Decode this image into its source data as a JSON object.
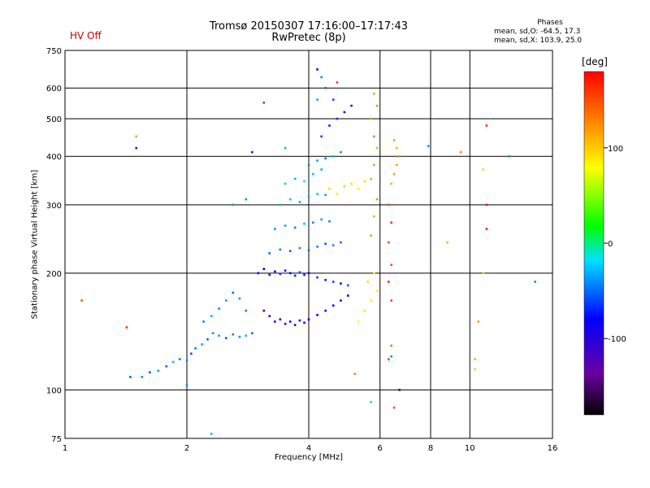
{
  "header": {
    "title": "Tromsø 20150307 17:16:00–17:17:43",
    "subtitle": "RwPretec (8p)",
    "status": "HV Off",
    "status_color": "#cc0000"
  },
  "phase_info": {
    "heading": "Phases",
    "o_mode": "mean, sd,O: -64.5, 17.3",
    "x_mode": "mean, sd,X: 103.9, 25.0"
  },
  "colorbar": {
    "unit": "[deg]",
    "range": [
      -180,
      180
    ],
    "ticks": [
      {
        "value": 100,
        "label": "100"
      },
      {
        "value": 0,
        "label": "0"
      },
      {
        "value": -100,
        "label": "-100"
      }
    ]
  },
  "chart_data": {
    "type": "scatter",
    "xlabel": "Frequency [MHz]",
    "ylabel": "Stationary phase Virtual Height [km]",
    "x_scale": "log",
    "y_scale": "log",
    "xlim": [
      1,
      16
    ],
    "ylim": [
      75,
      750
    ],
    "x_ticks": [
      {
        "value": 1,
        "label": "1"
      },
      {
        "value": 2,
        "label": "2"
      },
      {
        "value": 4,
        "label": "4"
      },
      {
        "value": 6,
        "label": "6"
      },
      {
        "value": 8,
        "label": "8"
      },
      {
        "value": 10,
        "label": "10"
      },
      {
        "value": 16,
        "label": "16"
      }
    ],
    "y_ticks": [
      {
        "value": 75,
        "label": "75"
      },
      {
        "value": 100,
        "label": "100"
      },
      {
        "value": 200,
        "label": "200"
      },
      {
        "value": 300,
        "label": "300"
      },
      {
        "value": 400,
        "label": "400"
      },
      {
        "value": 500,
        "label": "500"
      },
      {
        "value": 600,
        "label": "600"
      },
      {
        "value": 750,
        "label": "750"
      }
    ],
    "grid": true,
    "series": [
      {
        "points": [
          [
            1.55,
            108,
            -40
          ],
          [
            1.62,
            111,
            -55
          ],
          [
            1.7,
            112,
            -35
          ],
          [
            1.78,
            115,
            -50
          ],
          [
            1.85,
            118,
            -30
          ],
          [
            1.92,
            120,
            -45
          ],
          [
            2.0,
            119,
            -40
          ],
          [
            2.05,
            124,
            -60
          ],
          [
            2.1,
            128,
            -45
          ],
          [
            2.18,
            131,
            -30
          ],
          [
            2.25,
            135,
            -50
          ],
          [
            2.32,
            140,
            -40
          ],
          [
            2.4,
            138,
            -35
          ],
          [
            2.5,
            136,
            -55
          ],
          [
            2.6,
            139,
            -45
          ],
          [
            2.7,
            137,
            -40
          ],
          [
            2.8,
            138,
            -30
          ],
          [
            2.9,
            140,
            -50
          ],
          [
            2.2,
            150,
            -45
          ],
          [
            2.3,
            155,
            -30
          ],
          [
            2.4,
            162,
            -40
          ],
          [
            2.5,
            170,
            -35
          ],
          [
            2.6,
            178,
            -50
          ],
          [
            2.7,
            172,
            -40
          ],
          [
            2.8,
            160,
            -45
          ],
          [
            3.0,
            200,
            -75
          ],
          [
            3.1,
            205,
            -80
          ],
          [
            3.2,
            198,
            -70
          ],
          [
            3.3,
            202,
            -85
          ],
          [
            3.4,
            199,
            -65
          ],
          [
            3.5,
            203,
            -75
          ],
          [
            3.6,
            200,
            -80
          ],
          [
            3.7,
            197,
            -70
          ],
          [
            3.8,
            201,
            -60
          ],
          [
            3.9,
            198,
            -75
          ],
          [
            4.0,
            200,
            -80
          ],
          [
            4.2,
            195,
            -65
          ],
          [
            4.4,
            192,
            -70
          ],
          [
            4.6,
            190,
            -60
          ],
          [
            4.8,
            188,
            -75
          ],
          [
            5.0,
            186,
            -55
          ],
          [
            3.1,
            160,
            -95
          ],
          [
            3.2,
            155,
            -100
          ],
          [
            3.3,
            150,
            -90
          ],
          [
            3.4,
            152,
            -105
          ],
          [
            3.5,
            148,
            -95
          ],
          [
            3.6,
            150,
            -85
          ],
          [
            3.7,
            147,
            -100
          ],
          [
            3.8,
            151,
            -90
          ],
          [
            3.9,
            149,
            -95
          ],
          [
            4.0,
            152,
            -85
          ],
          [
            4.2,
            156,
            -90
          ],
          [
            4.4,
            160,
            -80
          ],
          [
            4.6,
            165,
            -85
          ],
          [
            4.8,
            170,
            -75
          ],
          [
            5.0,
            175,
            -80
          ],
          [
            3.2,
            225,
            -50
          ],
          [
            3.4,
            230,
            -45
          ],
          [
            3.6,
            228,
            -55
          ],
          [
            3.8,
            232,
            -40
          ],
          [
            4.0,
            229,
            -50
          ],
          [
            4.2,
            234,
            -45
          ],
          [
            4.4,
            238,
            -55
          ],
          [
            4.6,
            236,
            -40
          ],
          [
            4.8,
            240,
            -50
          ],
          [
            3.3,
            260,
            -40
          ],
          [
            3.5,
            265,
            -35
          ],
          [
            3.7,
            262,
            -45
          ],
          [
            3.9,
            268,
            -30
          ],
          [
            4.1,
            270,
            -40
          ],
          [
            4.3,
            275,
            -35
          ],
          [
            4.5,
            272,
            -45
          ],
          [
            3.4,
            300,
            -30
          ],
          [
            3.6,
            310,
            -25
          ],
          [
            3.8,
            305,
            -35
          ],
          [
            4.0,
            315,
            -30
          ],
          [
            4.2,
            320,
            -25
          ],
          [
            4.4,
            318,
            -35
          ],
          [
            3.5,
            340,
            -25
          ],
          [
            3.7,
            350,
            -30
          ],
          [
            3.9,
            345,
            -20
          ],
          [
            4.1,
            360,
            -25
          ],
          [
            4.3,
            370,
            -30
          ],
          [
            4.0,
            380,
            -40
          ],
          [
            4.2,
            390,
            -35
          ],
          [
            4.4,
            395,
            -45
          ],
          [
            4.6,
            400,
            -30
          ],
          [
            4.8,
            410,
            -40
          ],
          [
            4.3,
            450,
            -60
          ],
          [
            4.5,
            480,
            -70
          ],
          [
            4.7,
            500,
            -65
          ],
          [
            4.9,
            520,
            -75
          ],
          [
            5.1,
            540,
            -70
          ],
          [
            4.6,
            560,
            -60
          ],
          [
            4.4,
            600,
            -50
          ],
          [
            4.5,
            330,
            60
          ],
          [
            4.7,
            320,
            70
          ],
          [
            4.9,
            335,
            55
          ],
          [
            5.1,
            340,
            65
          ],
          [
            5.3,
            330,
            75
          ],
          [
            5.5,
            345,
            60
          ],
          [
            5.3,
            150,
            80
          ],
          [
            5.5,
            160,
            90
          ],
          [
            5.7,
            170,
            75
          ],
          [
            5.9,
            180,
            85
          ],
          [
            5.6,
            190,
            95
          ],
          [
            5.8,
            200,
            80
          ],
          [
            5.7,
            250,
            120
          ],
          [
            5.8,
            280,
            110
          ],
          [
            5.9,
            310,
            125
          ],
          [
            5.7,
            350,
            115
          ],
          [
            5.8,
            380,
            120
          ],
          [
            5.9,
            420,
            110
          ],
          [
            5.8,
            450,
            130
          ],
          [
            5.7,
            500,
            120
          ],
          [
            5.9,
            540,
            125
          ],
          [
            5.8,
            580,
            115
          ],
          [
            6.4,
            340,
            110
          ],
          [
            6.5,
            360,
            120
          ],
          [
            6.6,
            380,
            115
          ],
          [
            6.7,
            400,
            125
          ],
          [
            6.6,
            420,
            110
          ],
          [
            6.5,
            440,
            120
          ],
          [
            6.3,
            300,
            150
          ],
          [
            6.4,
            270,
            160
          ],
          [
            6.3,
            240,
            155
          ],
          [
            6.4,
            210,
            150
          ],
          [
            6.3,
            190,
            165
          ],
          [
            6.4,
            170,
            155
          ],
          [
            6.4,
            130,
            140
          ],
          [
            6.3,
            120,
            150
          ],
          [
            3.5,
            420,
            -30
          ],
          [
            3.1,
            550,
            -50
          ],
          [
            4.3,
            640,
            -40
          ],
          [
            4.2,
            560,
            -35
          ],
          [
            1.1,
            170,
            150
          ],
          [
            1.42,
            145,
            160
          ],
          [
            1.5,
            450,
            120
          ],
          [
            1.5,
            420,
            -110
          ],
          [
            2.8,
            310,
            -40
          ],
          [
            2.6,
            300,
            -35
          ],
          [
            2.9,
            410,
            -120
          ],
          [
            4.7,
            620,
            160
          ],
          [
            4.2,
            670,
            -90
          ],
          [
            7.9,
            425,
            -40
          ],
          [
            9.5,
            410,
            130
          ],
          [
            11.0,
            480,
            160
          ],
          [
            11.0,
            300,
            170
          ],
          [
            11.0,
            260,
            170
          ],
          [
            10.8,
            370,
            60
          ],
          [
            10.5,
            150,
            120
          ],
          [
            10.3,
            120,
            110
          ],
          [
            10.3,
            113,
            100
          ],
          [
            10.8,
            200,
            100
          ],
          [
            12.5,
            400,
            -40
          ],
          [
            14.5,
            190,
            -40
          ],
          [
            8.8,
            240,
            110
          ],
          [
            6.7,
            100,
            -150
          ],
          [
            6.5,
            90,
            150
          ],
          [
            5.7,
            93,
            -20
          ],
          [
            5.2,
            110,
            130
          ],
          [
            6.4,
            122,
            -40
          ],
          [
            2.3,
            77,
            -30
          ],
          [
            2.0,
            103,
            -40
          ],
          [
            1.45,
            108,
            -55
          ]
        ]
      }
    ]
  }
}
